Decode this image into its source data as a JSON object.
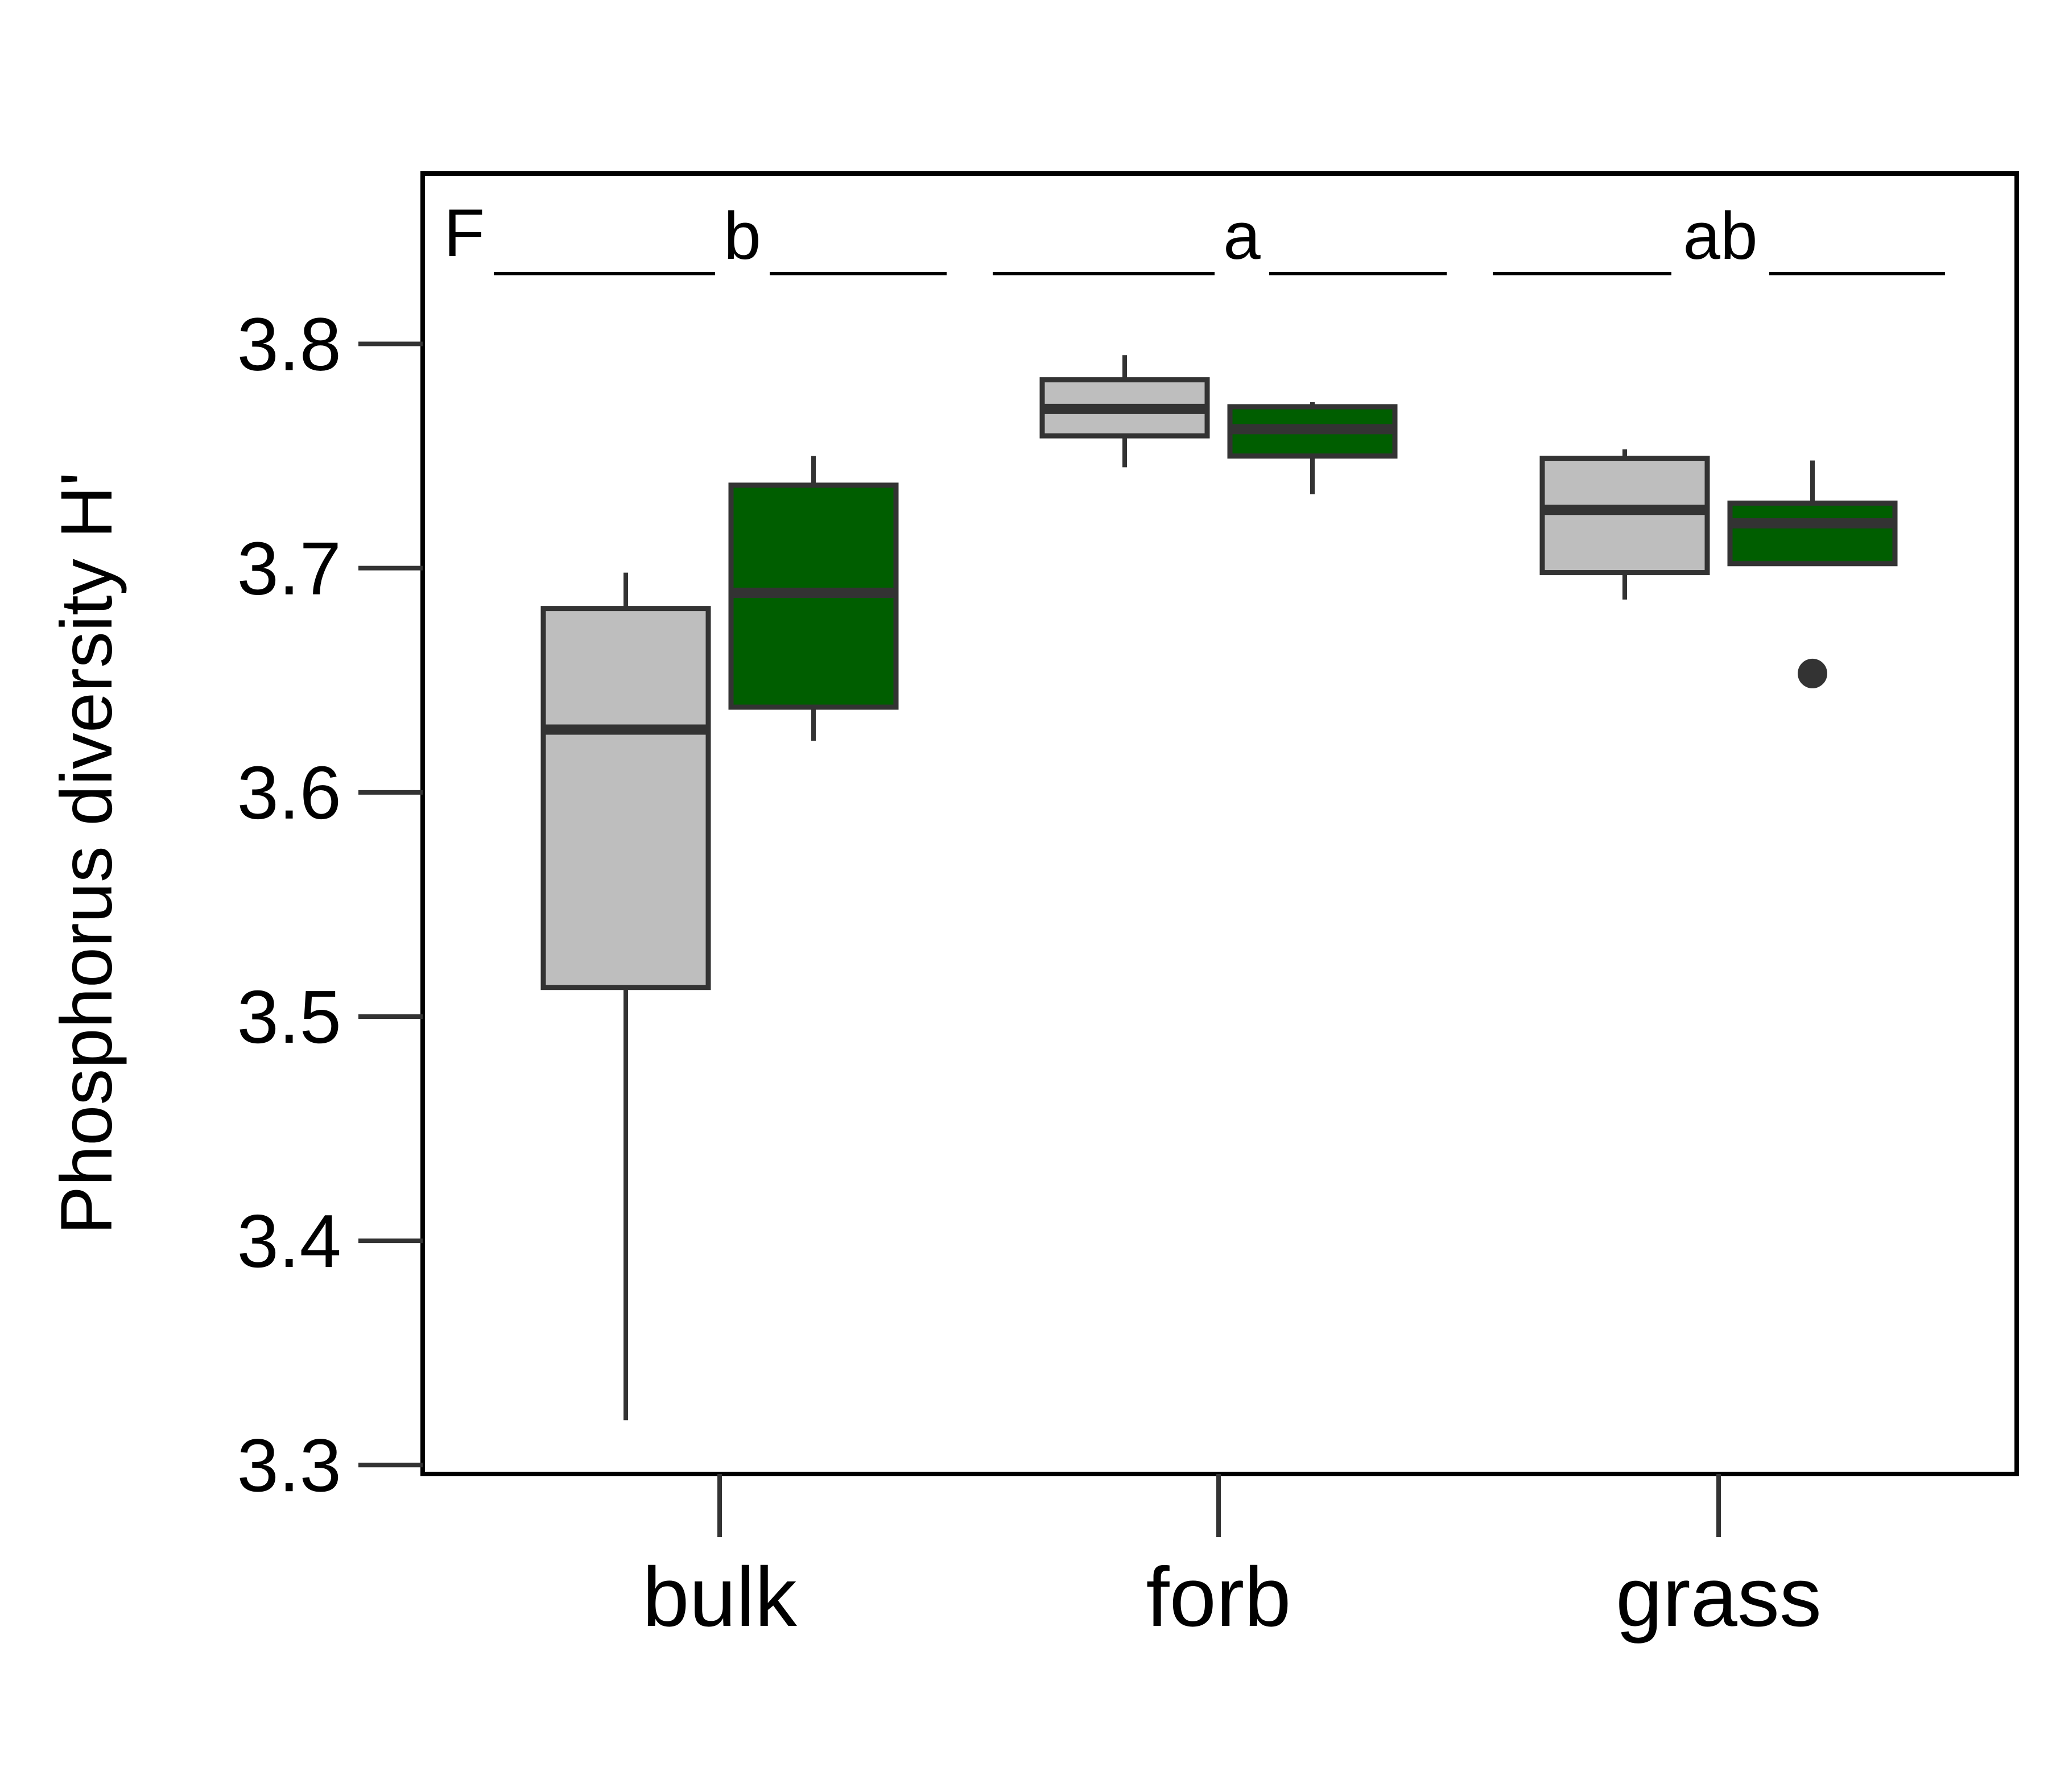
{
  "chart_data": {
    "type": "box",
    "panel_label": "F",
    "title": "",
    "xlabel": "",
    "ylabel": "Phosphorus diversity H'",
    "ylim": [
      3.296,
      3.876
    ],
    "yticks": [
      3.3,
      3.4,
      3.5,
      3.6,
      3.7,
      3.8
    ],
    "ytick_labels": [
      "3.3",
      "3.4",
      "3.5",
      "3.6",
      "3.7",
      "3.8"
    ],
    "categories": [
      "bulk",
      "forb",
      "grass"
    ],
    "group_letters": [
      "b",
      "a",
      "ab"
    ],
    "grid": false,
    "legend": "none",
    "series": [
      {
        "color": "#bebebe",
        "boxes": [
          {
            "whisker_low": 3.32,
            "q1": 3.513,
            "median": 3.628,
            "q3": 3.682,
            "whisker_high": 3.698,
            "outliers": []
          },
          {
            "whisker_low": 3.745,
            "q1": 3.759,
            "median": 3.771,
            "q3": 3.784,
            "whisker_high": 3.795,
            "outliers": []
          },
          {
            "whisker_low": 3.686,
            "q1": 3.698,
            "median": 3.726,
            "q3": 3.749,
            "whisker_high": 3.753,
            "outliers": []
          }
        ]
      },
      {
        "color": "#005e00",
        "boxes": [
          {
            "whisker_low": 3.623,
            "q1": 3.638,
            "median": 3.689,
            "q3": 3.737,
            "whisker_high": 3.75,
            "outliers": []
          },
          {
            "whisker_low": 3.733,
            "q1": 3.75,
            "median": 3.762,
            "q3": 3.772,
            "whisker_high": 3.774,
            "outliers": []
          },
          {
            "whisker_low": 3.702,
            "q1": 3.702,
            "median": 3.72,
            "q3": 3.729,
            "whisker_high": 3.748,
            "outliers": [
              3.653
            ]
          }
        ]
      }
    ]
  }
}
